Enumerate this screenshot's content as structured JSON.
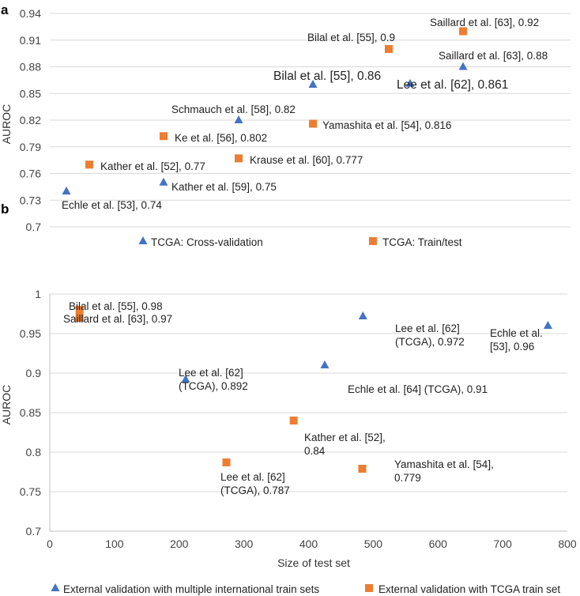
{
  "colors": {
    "blue": "#4472c4",
    "orange": "#ed7d31",
    "grid": "#d9d9d9"
  },
  "chart_data": [
    {
      "panel": "a",
      "type": "scatter",
      "ylabel": "AUROC",
      "xlabel": "",
      "ylim": [
        0.7,
        0.94
      ],
      "yticks": [
        "0.7",
        "0.73",
        "0.76",
        "0.79",
        "0.82",
        "0.85",
        "0.88",
        "0.91",
        "0.94"
      ],
      "grid": "horizontal",
      "legend_position": "bottom",
      "series": [
        {
          "name": "TCGA: Cross-validation",
          "marker": "triangle",
          "color": "#4472c4",
          "points": [
            {
              "label": "Echle et al. [53], 0.74",
              "y": 0.74
            },
            {
              "label": "Kather et al. [59], 0.75",
              "y": 0.75
            },
            {
              "label": "Schmauch et al. [58], 0.82",
              "y": 0.82
            },
            {
              "label": "Bilal et al. [55], 0.86",
              "y": 0.86
            },
            {
              "label": "Lee et al. [62], 0.861",
              "y": 0.861
            },
            {
              "label": "Saillard et al. [63], 0.88",
              "y": 0.88
            }
          ]
        },
        {
          "name": "TCGA: Train/test",
          "marker": "square",
          "color": "#ed7d31",
          "points": [
            {
              "label": "Kather et al. [52], 0.77",
              "y": 0.77
            },
            {
              "label": "Ke et al. [56], 0.802",
              "y": 0.802
            },
            {
              "label": "Krause et al. [60], 0.777",
              "y": 0.777
            },
            {
              "label": "Yamashita et al. [54], 0.816",
              "y": 0.816
            },
            {
              "label": "Bilal et al. [55], 0.9",
              "y": 0.9
            },
            {
              "label": "Saillard et al. [63], 0.92",
              "y": 0.92
            }
          ]
        }
      ]
    },
    {
      "panel": "b",
      "type": "scatter",
      "xlabel": "Size of test set",
      "ylabel": "AUROC",
      "xlim": [
        0,
        800
      ],
      "ylim": [
        0.7,
        1.0
      ],
      "xticks": [
        "0",
        "100",
        "200",
        "300",
        "400",
        "500",
        "600",
        "700",
        "800"
      ],
      "yticks": [
        "0.7",
        "0.75",
        "0.8",
        "0.85",
        "0.9",
        "0.95",
        "1"
      ],
      "grid": "horizontal",
      "legend_position": "bottom",
      "series": [
        {
          "name": "External validation with multiple international train sets",
          "marker": "triangle",
          "color": "#4472c4",
          "points": [
            {
              "label": "Lee et al. [62] (TCGA), 0.892",
              "x": 210,
              "y": 0.892
            },
            {
              "label": "Echle et al. [64] (TCGA), 0.91",
              "x": 425,
              "y": 0.91
            },
            {
              "label": "Lee et al. [62] (TCGA), 0.972",
              "x": 484,
              "y": 0.972
            },
            {
              "label": "Echle et al. [53], 0.96",
              "x": 770,
              "y": 0.96
            }
          ]
        },
        {
          "name": "External validation with TCGA train set",
          "marker": "square",
          "color": "#ed7d31",
          "points": [
            {
              "label": "Bilal et al. [55], 0.98",
              "x": 46,
              "y": 0.98
            },
            {
              "label": "Saillard et al. [63], 0.97",
              "x": 46,
              "y": 0.97
            },
            {
              "label": "Lee et al. [62] (TCGA), 0.787",
              "x": 273,
              "y": 0.787
            },
            {
              "label": "Kather et al. [52], 0.84",
              "x": 377,
              "y": 0.84
            },
            {
              "label": "Yamashita et al. [54], 0.779",
              "x": 483,
              "y": 0.779
            }
          ]
        }
      ]
    }
  ]
}
